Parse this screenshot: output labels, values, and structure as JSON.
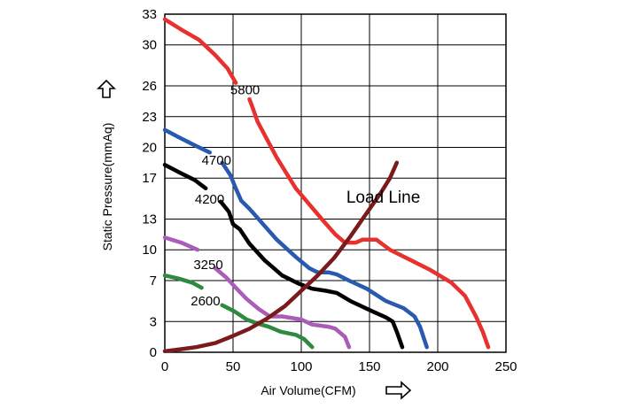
{
  "chart_data": {
    "type": "line",
    "xlabel": "Air Volume(CFM)",
    "ylabel": "Static Pressure(mmAq)",
    "xlim": [
      0,
      250
    ],
    "ylim": [
      0,
      33
    ],
    "x_ticks": [
      "0",
      "50",
      "100",
      "150",
      "200",
      "250"
    ],
    "y_ticks": [
      "0",
      "3",
      "7",
      "10",
      "13",
      "17",
      "20",
      "23",
      "26",
      "30",
      "33"
    ],
    "grid": true,
    "arrows": {
      "x_axis": "right-arrow-icon",
      "y_axis": "up-arrow-icon"
    },
    "series": [
      {
        "name": "5800",
        "color": "#e8302e",
        "label": "5800",
        "points": [
          [
            0,
            32.5
          ],
          [
            12,
            31.5
          ],
          [
            25,
            30.5
          ],
          [
            37,
            29
          ],
          [
            46,
            27.7
          ],
          [
            52,
            26.3
          ],
          [
            56,
            25.5
          ],
          [
            62,
            24.7
          ],
          [
            64,
            24
          ],
          [
            68,
            22.5
          ],
          [
            82,
            19
          ],
          [
            96,
            16
          ],
          [
            115,
            13
          ],
          [
            125,
            11.5
          ],
          [
            132,
            10.7
          ],
          [
            140,
            10.7
          ],
          [
            145,
            11
          ],
          [
            155,
            11
          ],
          [
            160,
            10.5
          ],
          [
            165,
            10
          ],
          [
            180,
            9
          ],
          [
            195,
            8
          ],
          [
            210,
            6.8
          ],
          [
            220,
            5.5
          ],
          [
            228,
            3.5
          ],
          [
            233,
            2
          ],
          [
            237,
            0.5
          ]
        ]
      },
      {
        "name": "4700",
        "color": "#2a5ab0",
        "label": "4700",
        "points": [
          [
            0,
            21.7
          ],
          [
            10,
            21
          ],
          [
            22,
            20.2
          ],
          [
            33,
            19.5
          ],
          [
            42,
            18.5
          ],
          [
            48,
            17.3
          ],
          [
            52,
            16
          ],
          [
            56,
            14.8
          ],
          [
            62,
            14
          ],
          [
            70,
            12.8
          ],
          [
            82,
            11
          ],
          [
            96,
            9.3
          ],
          [
            106,
            8.2
          ],
          [
            112,
            7.8
          ],
          [
            120,
            7.8
          ],
          [
            126,
            7.6
          ],
          [
            135,
            7
          ],
          [
            148,
            6.2
          ],
          [
            162,
            5
          ],
          [
            175,
            4.3
          ],
          [
            183,
            3.5
          ],
          [
            187,
            2.5
          ],
          [
            192,
            0.5
          ]
        ]
      },
      {
        "name": "4200",
        "color": "#000000",
        "label": "4200",
        "points": [
          [
            0,
            18.3
          ],
          [
            10,
            17.6
          ],
          [
            22,
            16.8
          ],
          [
            30,
            16
          ],
          [
            41,
            14.7
          ],
          [
            47,
            13.7
          ],
          [
            50,
            12.5
          ],
          [
            55,
            12
          ],
          [
            62,
            10.6
          ],
          [
            73,
            9
          ],
          [
            86,
            7.5
          ],
          [
            98,
            6.7
          ],
          [
            108,
            6.2
          ],
          [
            118,
            6
          ],
          [
            126,
            5.8
          ],
          [
            136,
            5
          ],
          [
            152,
            4
          ],
          [
            162,
            3.4
          ],
          [
            167,
            3
          ],
          [
            170,
            2
          ],
          [
            174,
            0.5
          ]
        ]
      },
      {
        "name": "3250",
        "color": "#a95db8",
        "label": "3250",
        "points": [
          [
            0,
            11.2
          ],
          [
            12,
            10.7
          ],
          [
            24,
            10
          ],
          [
            31,
            9.3
          ],
          [
            37,
            8.2
          ],
          [
            45,
            7.3
          ],
          [
            52,
            6.3
          ],
          [
            60,
            5.2
          ],
          [
            69,
            4.2
          ],
          [
            77,
            3.5
          ],
          [
            86,
            3.5
          ],
          [
            100,
            3.2
          ],
          [
            108,
            2.7
          ],
          [
            120,
            2.5
          ],
          [
            125,
            2.3
          ],
          [
            132,
            1.5
          ],
          [
            135,
            0.5
          ]
        ]
      },
      {
        "name": "2600",
        "color": "#2e8a3e",
        "label": "2600",
        "points": [
          [
            0,
            7.5
          ],
          [
            10,
            7.2
          ],
          [
            20,
            6.8
          ],
          [
            27,
            6.3
          ],
          [
            33,
            5.5
          ],
          [
            42,
            4.6
          ],
          [
            51,
            4
          ],
          [
            60,
            3.2
          ],
          [
            68,
            2.8
          ],
          [
            76,
            2.5
          ],
          [
            85,
            2
          ],
          [
            96,
            1.7
          ],
          [
            102,
            1.3
          ],
          [
            108,
            0.5
          ]
        ]
      },
      {
        "name": "Load Line",
        "color": "#7a1a1a",
        "label": "Load Line",
        "points": [
          [
            0,
            0.1
          ],
          [
            12,
            0.3
          ],
          [
            23,
            0.5
          ],
          [
            37,
            0.9
          ],
          [
            50,
            1.6
          ],
          [
            62,
            2.3
          ],
          [
            75,
            3.3
          ],
          [
            88,
            4.5
          ],
          [
            100,
            6
          ],
          [
            112,
            7.5
          ],
          [
            124,
            9.2
          ],
          [
            136,
            11.3
          ],
          [
            148,
            13.6
          ],
          [
            158,
            15.5
          ],
          [
            165,
            17
          ],
          [
            170,
            18.5
          ]
        ]
      }
    ]
  }
}
